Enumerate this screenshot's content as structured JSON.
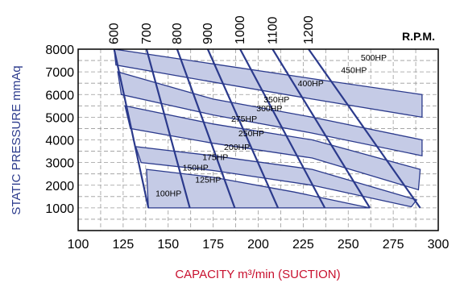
{
  "chart_data": {
    "type": "line",
    "xlabel": "CAPACITY m³/min (SUCTION)",
    "ylabel": "STATIC PRESSURE mmAq",
    "xlim": [
      100,
      300
    ],
    "ylim": [
      0,
      8000
    ],
    "x_ticks": [
      "100",
      "125",
      "150",
      "175",
      "200",
      "225",
      "250",
      "275",
      "300"
    ],
    "y_ticks": [
      "1000",
      "2000",
      "3000",
      "4000",
      "5000",
      "6000",
      "7000",
      "8000"
    ],
    "grid": true,
    "rpm_unit": "R.P.M.",
    "colors": {
      "axis_title": "#c8102e",
      "curve": "#2b3a8c",
      "band_fill": "#c5cbe6",
      "grid": "#9a9a9a"
    },
    "rpm_lines": [
      {
        "label": "600",
        "points": [
          [
            120,
            8000
          ],
          [
            139,
            1000
          ]
        ]
      },
      {
        "label": "700",
        "points": [
          [
            138,
            8000
          ],
          [
            162,
            1000
          ]
        ]
      },
      {
        "label": "800",
        "points": [
          [
            155,
            8000
          ],
          [
            187,
            1000
          ]
        ]
      },
      {
        "label": "900",
        "points": [
          [
            172,
            8000
          ],
          [
            211,
            1000
          ]
        ]
      },
      {
        "label": "1000",
        "points": [
          [
            190,
            8000
          ],
          [
            237,
            1000
          ]
        ]
      },
      {
        "label": "1100",
        "points": [
          [
            208,
            8000
          ],
          [
            262,
            1000
          ]
        ]
      },
      {
        "label": "1200",
        "points": [
          [
            228,
            8000
          ],
          [
            290,
            1000
          ]
        ]
      }
    ],
    "rpm_line_top_pressure": 8000,
    "hp_bands": [
      {
        "labels": [
          "100HP",
          "125HP"
        ],
        "upper": [
          [
            138,
            2700
          ],
          [
            175,
            2350
          ],
          [
            220,
            1700
          ],
          [
            262,
            1000
          ]
        ],
        "lower": [
          [
            139,
            1000
          ],
          [
            185,
            1000
          ]
        ]
      },
      {
        "labels": [
          "150HP",
          "175HP"
        ],
        "upper": [
          [
            132,
            3700
          ],
          [
            175,
            3300
          ],
          [
            230,
            2700
          ],
          [
            288,
            1350
          ]
        ],
        "lower": [
          [
            135,
            3000
          ],
          [
            175,
            2650
          ],
          [
            230,
            2000
          ],
          [
            285,
            1050
          ]
        ]
      },
      {
        "labels": [
          "200HP",
          "250HP"
        ],
        "upper": [
          [
            126,
            5500
          ],
          [
            175,
            4700
          ],
          [
            230,
            4000
          ],
          [
            290,
            2700
          ]
        ],
        "lower": [
          [
            129,
            4500
          ],
          [
            175,
            3850
          ],
          [
            230,
            3200
          ],
          [
            289,
            1800
          ]
        ]
      },
      {
        "labels": [
          "275HP",
          "300HP",
          "350HP"
        ],
        "upper": [
          [
            122,
            7000
          ],
          [
            175,
            5800
          ],
          [
            230,
            5000
          ],
          [
            291,
            4000
          ]
        ],
        "lower": [
          [
            124,
            6000
          ],
          [
            175,
            5100
          ],
          [
            230,
            4300
          ],
          [
            291,
            3300
          ]
        ]
      },
      {
        "labels": [
          "400HP",
          "450HP",
          "500HP"
        ],
        "upper": [
          [
            120,
            8000
          ],
          [
            175,
            7350
          ],
          [
            230,
            6700
          ],
          [
            291,
            6000
          ]
        ],
        "lower": [
          [
            121,
            7300
          ],
          [
            175,
            6550
          ],
          [
            230,
            5800
          ],
          [
            291,
            5000
          ]
        ]
      }
    ],
    "hp_labels": [
      {
        "label": "100HP",
        "x": 143,
        "y": 1650
      },
      {
        "label": "125HP",
        "x": 165,
        "y": 2250
      },
      {
        "label": "150HP",
        "x": 158,
        "y": 2800
      },
      {
        "label": "175HP",
        "x": 169,
        "y": 3250
      },
      {
        "label": "200HP",
        "x": 181,
        "y": 3700
      },
      {
        "label": "250HP",
        "x": 189,
        "y": 4300
      },
      {
        "label": "275HP",
        "x": 185,
        "y": 4950
      },
      {
        "label": "300HP",
        "x": 199,
        "y": 5400
      },
      {
        "label": "350HP",
        "x": 203,
        "y": 5800
      },
      {
        "label": "400HP",
        "x": 222,
        "y": 6500
      },
      {
        "label": "450HP",
        "x": 246,
        "y": 7100
      },
      {
        "label": "500HP",
        "x": 257,
        "y": 7650
      }
    ]
  }
}
